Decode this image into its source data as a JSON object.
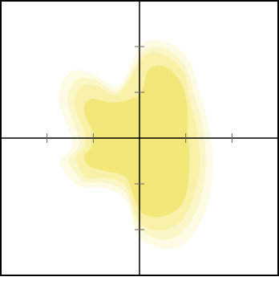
{
  "chart_data": {
    "type": "area",
    "title": "",
    "xlabel": "",
    "ylabel": "",
    "xlim": [
      -3,
      3
    ],
    "ylim": [
      -3,
      3
    ],
    "grid": false,
    "legend": "none",
    "axes": {
      "crosshair_at": [
        0,
        0
      ]
    },
    "x_ticks": [
      -2,
      -1,
      1,
      2
    ],
    "y_ticks": [
      -2,
      -1,
      1,
      2
    ],
    "colors": {
      "background": "#ffffff",
      "frame": "#000000",
      "axis": "#000000",
      "tick": "#666666",
      "levels": [
        "#fdfbe3",
        "#fbf6c8",
        "#f9f1a8",
        "#f3e77a"
      ]
    },
    "regions": [
      {
        "name": "",
        "level": 1,
        "polygon": [
          [
            0.05,
            2.05
          ],
          [
            0.55,
            2.1
          ],
          [
            1.05,
            1.75
          ],
          [
            1.3,
            1.0
          ],
          [
            1.5,
            0.25
          ],
          [
            1.58,
            -0.55
          ],
          [
            1.5,
            -1.35
          ],
          [
            1.2,
            -2.05
          ],
          [
            0.8,
            -2.4
          ],
          [
            0.3,
            -2.35
          ],
          [
            -0.05,
            -2.1
          ],
          [
            -0.3,
            -1.35
          ],
          [
            -0.75,
            -1.1
          ],
          [
            -1.3,
            -1.05
          ],
          [
            -1.65,
            -0.7
          ],
          [
            -1.7,
            -0.45
          ],
          [
            -1.45,
            -0.1
          ],
          [
            -1.75,
            0.85
          ],
          [
            -1.5,
            1.45
          ],
          [
            -1.0,
            1.4
          ],
          [
            -0.45,
            1.15
          ]
        ]
      },
      {
        "name": "",
        "level": 2,
        "polygon": [
          [
            0.1,
            1.9
          ],
          [
            0.6,
            1.93
          ],
          [
            1.0,
            1.55
          ],
          [
            1.2,
            0.9
          ],
          [
            1.38,
            0.2
          ],
          [
            1.43,
            -0.6
          ],
          [
            1.33,
            -1.3
          ],
          [
            1.05,
            -1.9
          ],
          [
            0.7,
            -2.2
          ],
          [
            0.25,
            -2.15
          ],
          [
            -0.05,
            -1.9
          ],
          [
            -0.3,
            -1.2
          ],
          [
            -0.75,
            -0.98
          ],
          [
            -1.2,
            -0.95
          ],
          [
            -1.5,
            -0.6
          ],
          [
            -1.5,
            -0.4
          ],
          [
            -1.3,
            -0.08
          ],
          [
            -1.55,
            0.8
          ],
          [
            -1.35,
            1.28
          ],
          [
            -0.95,
            1.27
          ],
          [
            -0.45,
            1.05
          ]
        ]
      },
      {
        "name": "",
        "level": 3,
        "polygon": [
          [
            0.12,
            1.8
          ],
          [
            0.55,
            1.8
          ],
          [
            0.95,
            1.45
          ],
          [
            1.1,
            0.8
          ],
          [
            1.25,
            0.15
          ],
          [
            1.3,
            -0.6
          ],
          [
            1.2,
            -1.2
          ],
          [
            0.95,
            -1.75
          ],
          [
            0.6,
            -2.0
          ],
          [
            0.2,
            -1.97
          ],
          [
            -0.05,
            -1.75
          ],
          [
            -0.3,
            -1.05
          ],
          [
            -0.75,
            -0.87
          ],
          [
            -1.15,
            -0.87
          ],
          [
            -1.35,
            -0.55
          ],
          [
            -1.35,
            -0.38
          ],
          [
            -1.15,
            -0.05
          ],
          [
            -1.4,
            0.72
          ],
          [
            -1.25,
            1.13
          ],
          [
            -0.9,
            1.13
          ],
          [
            -0.45,
            0.97
          ]
        ]
      },
      {
        "name": "",
        "level": 4,
        "polygon": [
          [
            0.2,
            1.5
          ],
          [
            0.58,
            1.55
          ],
          [
            0.9,
            1.2
          ],
          [
            1.03,
            0.7
          ],
          [
            1.05,
            0.1
          ],
          [
            1.08,
            -0.5
          ],
          [
            1.03,
            -1.15
          ],
          [
            0.83,
            -1.55
          ],
          [
            0.45,
            -1.72
          ],
          [
            0.08,
            -1.65
          ],
          [
            -0.1,
            -1.35
          ],
          [
            -0.3,
            -0.85
          ],
          [
            -0.75,
            -0.72
          ],
          [
            -1.08,
            -0.62
          ],
          [
            -1.2,
            -0.4
          ],
          [
            -1.05,
            -0.2
          ],
          [
            -1.0,
            0.1
          ],
          [
            -1.2,
            0.58
          ],
          [
            -1.05,
            0.85
          ],
          [
            -0.55,
            0.78
          ],
          [
            0.0,
            0.95
          ]
        ]
      }
    ]
  }
}
